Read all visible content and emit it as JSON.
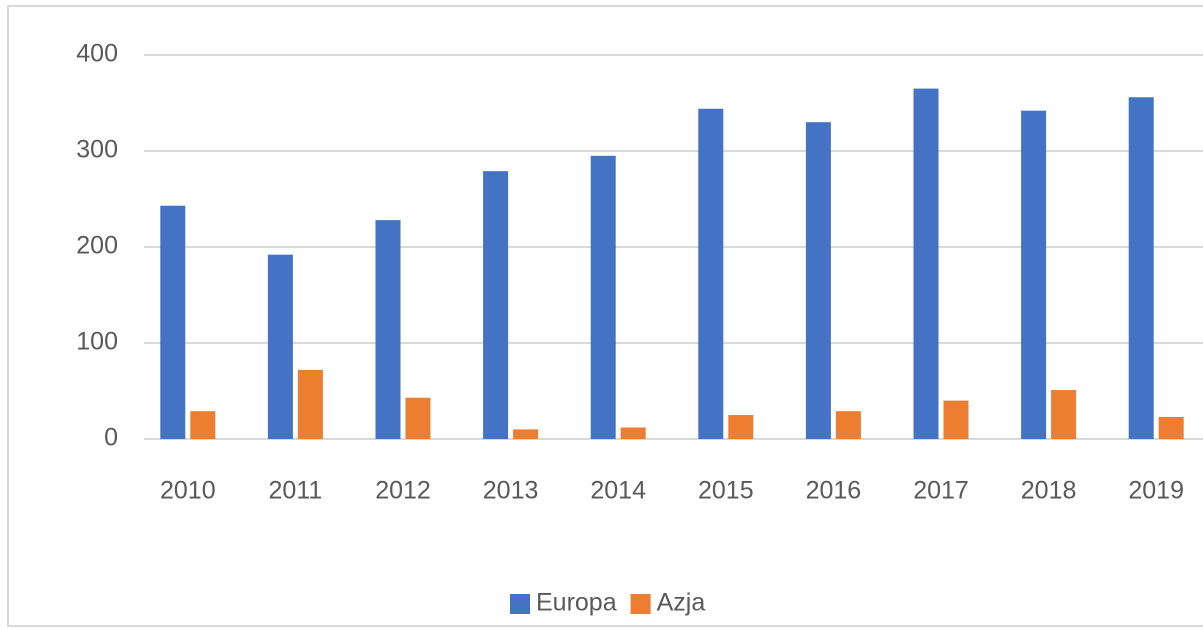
{
  "chart_data": {
    "type": "bar",
    "categories": [
      "2010",
      "2011",
      "2012",
      "2013",
      "2014",
      "2015",
      "2016",
      "2017",
      "2018",
      "2019"
    ],
    "series": [
      {
        "name": "Europa",
        "color": "#4472c4",
        "values": [
          243,
          192,
          228,
          279,
          295,
          344,
          330,
          365,
          342,
          356
        ]
      },
      {
        "name": "Azja",
        "color": "#ed7d31",
        "values": [
          29,
          72,
          43,
          10,
          12,
          25,
          29,
          40,
          51,
          23
        ]
      }
    ],
    "ylim": [
      0,
      400
    ],
    "yticks": [
      0,
      100,
      200,
      300,
      400
    ],
    "grid": true,
    "legend": "bottom"
  }
}
